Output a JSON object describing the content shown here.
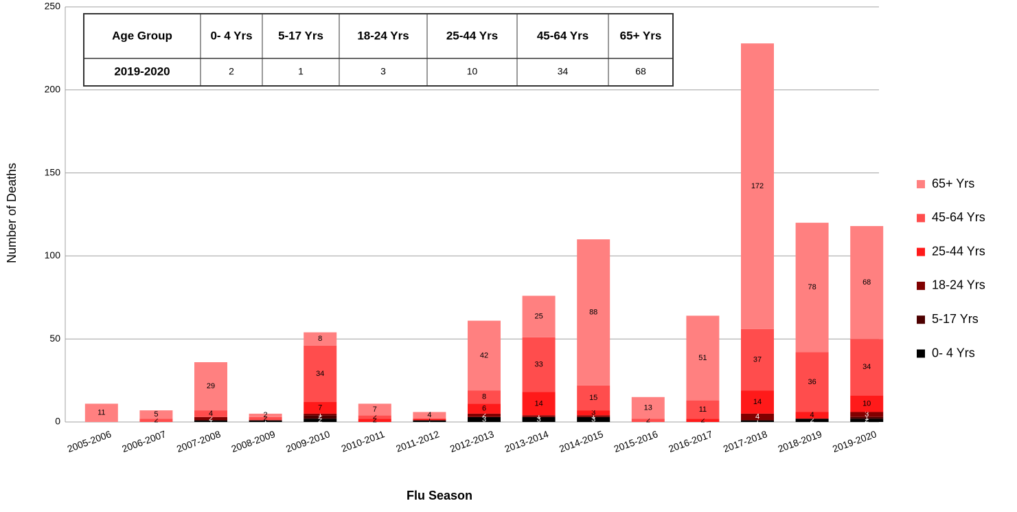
{
  "chart_data": {
    "type": "stacked-bar",
    "y_label": "Number of Deaths",
    "x_label": "Flu Season",
    "categories": [
      "2005-2006",
      "2006-2007",
      "2007-2008",
      "2008-2009",
      "2009-2010",
      "2010-2011",
      "2011-2012",
      "2012-2013",
      "2013-2014",
      "2014-2015",
      "2015-2016",
      "2016-2017",
      "2017-2018",
      "2018-2019",
      "2019-2020"
    ],
    "series": [
      {
        "name": "0- 4 Yrs",
        "color": "#000000",
        "values": [
          0,
          0,
          1,
          1,
          2,
          0,
          1,
          3,
          3,
          3,
          0,
          0,
          1,
          2,
          2
        ]
      },
      {
        "name": "5-17 Yrs",
        "color": "#4d0000",
        "values": [
          0,
          0,
          0,
          0,
          2,
          0,
          0,
          0,
          0,
          0,
          0,
          0,
          0,
          0,
          1
        ]
      },
      {
        "name": "18-24 Yrs",
        "color": "#800000",
        "values": [
          0,
          0,
          2,
          0,
          1,
          0,
          0,
          2,
          1,
          1,
          0,
          0,
          4,
          0,
          3
        ]
      },
      {
        "name": "25-44 Yrs",
        "color": "#ff1a1a",
        "values": [
          0,
          0,
          0,
          0,
          7,
          2,
          1,
          6,
          14,
          3,
          0,
          2,
          14,
          4,
          10
        ]
      },
      {
        "name": "45-64 Yrs",
        "color": "#ff4d4d",
        "values": [
          0,
          2,
          4,
          2,
          34,
          2,
          0,
          8,
          33,
          15,
          2,
          11,
          37,
          36,
          34
        ]
      },
      {
        "name": "65+ Yrs",
        "color": "#ff8080",
        "values": [
          11,
          5,
          29,
          2,
          8,
          7,
          4,
          42,
          25,
          88,
          13,
          51,
          172,
          78,
          68
        ]
      }
    ],
    "ylim": [
      0,
      250
    ],
    "yticks": [
      0,
      50,
      100,
      150,
      200,
      250
    ],
    "grid": true,
    "table": {
      "header": [
        "Age Group",
        "0- 4 Yrs",
        "5-17 Yrs",
        "18-24 Yrs",
        "25-44 Yrs",
        "45-64 Yrs",
        "65+ Yrs"
      ],
      "rows": [
        [
          "2019-2020",
          "2",
          "1",
          "3",
          "10",
          "34",
          "68"
        ]
      ]
    }
  }
}
